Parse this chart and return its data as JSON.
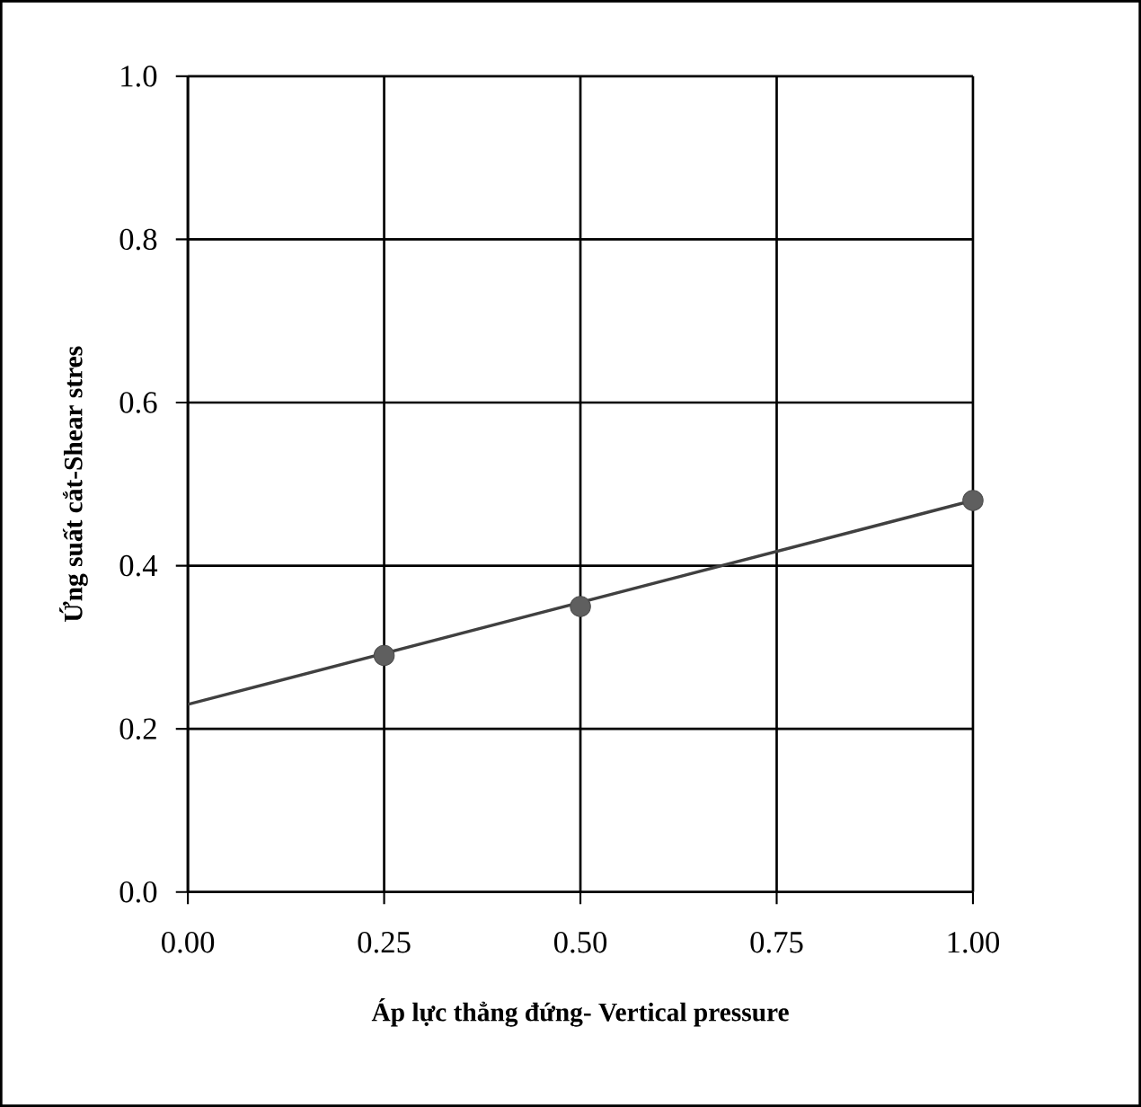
{
  "chart_data": {
    "type": "scatter",
    "xlabel": "Áp lực thẳng đứng- Vertical pressure",
    "ylabel": "Ứng suất cắt-Shear stres",
    "xlim": [
      0,
      1
    ],
    "ylim": [
      0,
      1
    ],
    "xticks": [
      {
        "value": 0,
        "label": "0.00"
      },
      0.25,
      {
        "value": 0.5,
        "label": "0.50"
      },
      0.75,
      {
        "value": 1,
        "label": "1.00"
      }
    ],
    "yticks": [
      {
        "value": 0,
        "label": "0.0"
      },
      0.2,
      0.4,
      0.6,
      0.8,
      {
        "value": 1,
        "label": "1.0"
      }
    ],
    "grid": true,
    "series": [
      {
        "marker": "circle",
        "color": "#5f5f5f",
        "x": [
          0.25,
          0.5,
          1.0
        ],
        "values": [
          0.29,
          0.35,
          0.48
        ]
      },
      {
        "type": "line",
        "marker": "none",
        "line_style": "solid",
        "color": "#404040",
        "x": [
          0,
          1
        ],
        "values": [
          0.23,
          0.48
        ]
      }
    ]
  }
}
